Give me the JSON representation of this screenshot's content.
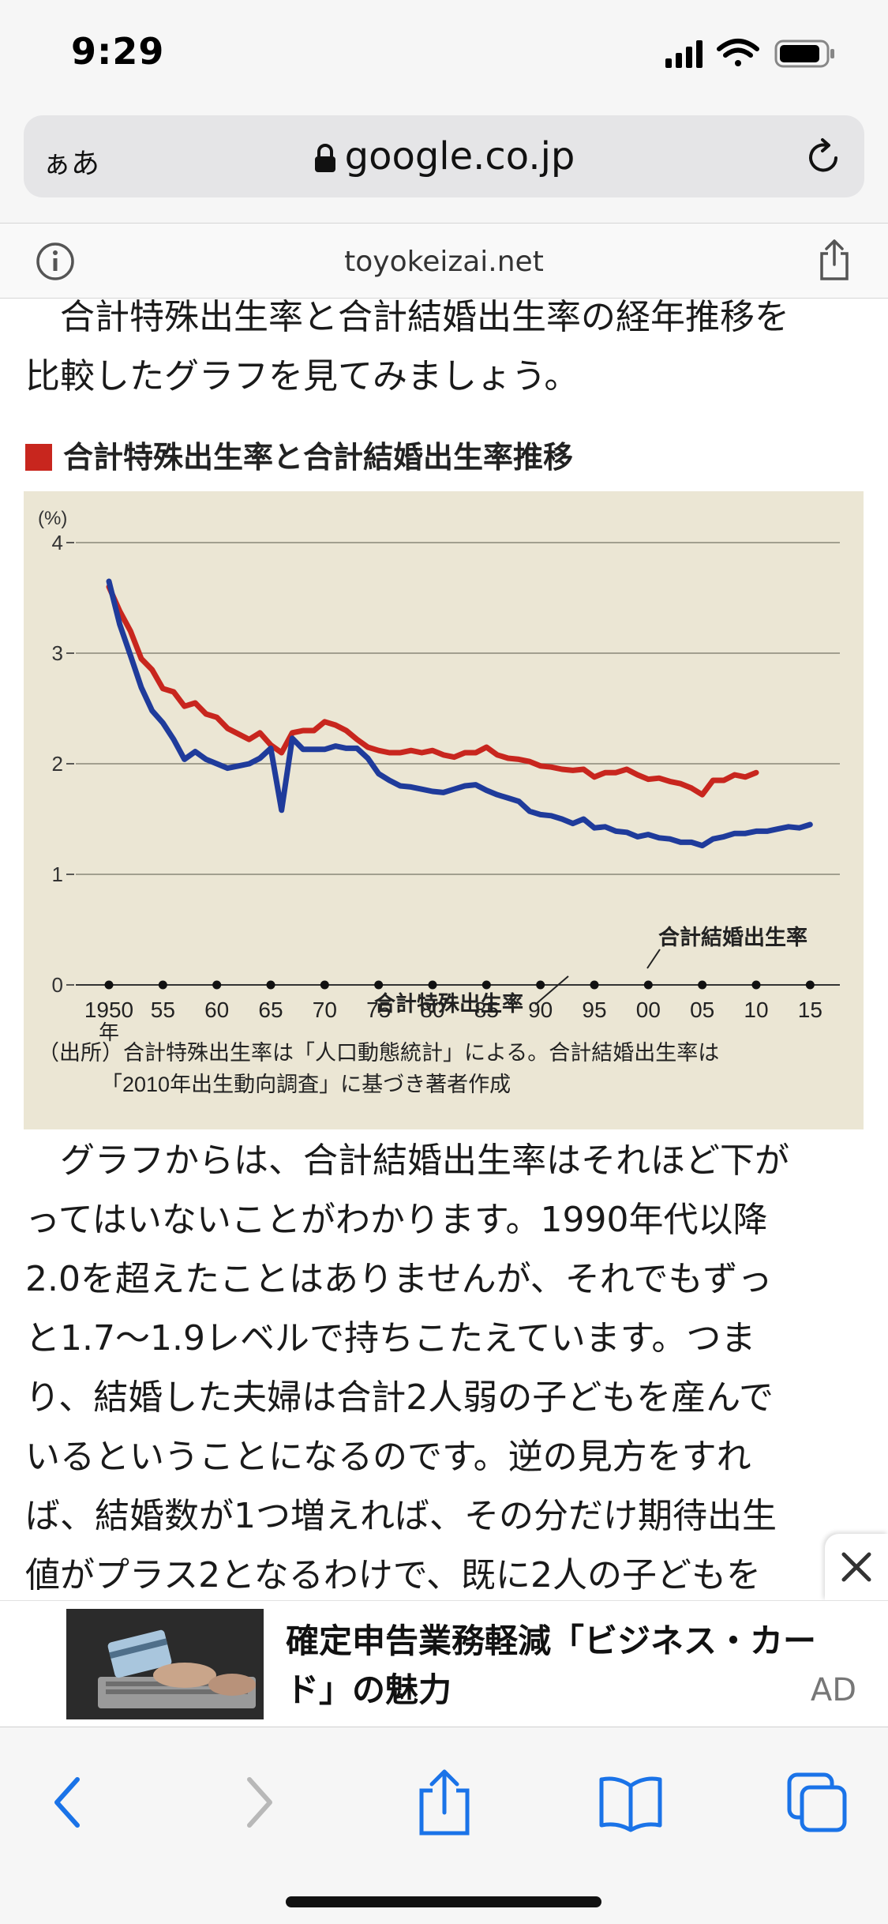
{
  "status": {
    "time": "9:29"
  },
  "browser": {
    "aa_label": "ぁあ",
    "url": "google.co.jp",
    "domain": "toyokeizai.net"
  },
  "article": {
    "para_intro": [
      "　合計特殊出生率と合計結婚出生率の経年推移を",
      "比較したグラフを見てみましょう。"
    ],
    "chart_heading": "合計特殊出生率と合計結婚出生率推移",
    "para_body": [
      "　グラフからは、合計結婚出生率はそれほど下が",
      "ってはいないことがわかります。1990年代以降",
      "2.0を超えたことはありませんが、それでもずっ",
      "と1.7～1.9レベルで持ちこたえています。つま",
      "り、結婚した夫婦は合計2人弱の子どもを産んで",
      "いるということになるのです。逆の見方をすれ",
      "ば、結婚数が1つ増えれば、その分だけ期待出生",
      "値がプラス2となるわけで、既に2人の子どもを"
    ]
  },
  "chart_data": {
    "type": "line",
    "title": "合計特殊出生率と合計結婚出生率推移",
    "ylabel": "(%)",
    "ylim": [
      0,
      4
    ],
    "yticks": [
      "0",
      "1",
      "2",
      "3",
      "4"
    ],
    "xlim": [
      1950,
      2016
    ],
    "xtick_values": [
      1950,
      1955,
      1960,
      1965,
      1970,
      1975,
      1980,
      1985,
      1990,
      1995,
      2000,
      2005,
      2010,
      2015
    ],
    "xtick_labels": [
      "1950",
      "55",
      "60",
      "65",
      "70",
      "75",
      "80",
      "85",
      "90",
      "95",
      "00",
      "05",
      "10",
      "15"
    ],
    "xunit": "年",
    "grid": true,
    "source_note": [
      "（出所）合計特殊出生率は「人口動態統計」による。合計結婚出生率は",
      "「2010年出生動向調査」に基づき著者作成"
    ],
    "series": [
      {
        "name": "合計結婚出生率",
        "color": "#c8261e",
        "x": [
          1950,
          1951,
          1952,
          1953,
          1954,
          1955,
          1956,
          1957,
          1958,
          1959,
          1960,
          1961,
          1962,
          1963,
          1964,
          1965,
          1966,
          1967,
          1968,
          1969,
          1970,
          1971,
          1972,
          1973,
          1974,
          1975,
          1976,
          1977,
          1978,
          1979,
          1980,
          1981,
          1982,
          1983,
          1984,
          1985,
          1986,
          1987,
          1988,
          1989,
          1990,
          1991,
          1992,
          1993,
          1994,
          1995,
          1996,
          1997,
          1998,
          1999,
          2000,
          2001,
          2002,
          2003,
          2004,
          2005,
          2006,
          2007,
          2008,
          2009,
          2010
        ],
        "y": [
          3.6,
          3.38,
          3.2,
          2.95,
          2.85,
          2.68,
          2.65,
          2.52,
          2.55,
          2.45,
          2.42,
          2.32,
          2.27,
          2.22,
          2.28,
          2.17,
          2.1,
          2.28,
          2.3,
          2.3,
          2.38,
          2.35,
          2.3,
          2.22,
          2.15,
          2.12,
          2.1,
          2.1,
          2.12,
          2.1,
          2.12,
          2.08,
          2.06,
          2.1,
          2.1,
          2.15,
          2.08,
          2.05,
          2.04,
          2.02,
          1.98,
          1.97,
          1.95,
          1.94,
          1.95,
          1.88,
          1.92,
          1.92,
          1.95,
          1.9,
          1.86,
          1.87,
          1.84,
          1.82,
          1.78,
          1.72,
          1.85,
          1.85,
          1.9,
          1.88,
          1.92
        ]
      },
      {
        "name": "合計特殊出生率",
        "color": "#1f3b9b",
        "x": [
          1950,
          1951,
          1952,
          1953,
          1954,
          1955,
          1956,
          1957,
          1958,
          1959,
          1960,
          1961,
          1962,
          1963,
          1964,
          1965,
          1966,
          1967,
          1968,
          1969,
          1970,
          1971,
          1972,
          1973,
          1974,
          1975,
          1976,
          1977,
          1978,
          1979,
          1980,
          1981,
          1982,
          1983,
          1984,
          1985,
          1986,
          1987,
          1988,
          1989,
          1990,
          1991,
          1992,
          1993,
          1994,
          1995,
          1996,
          1997,
          1998,
          1999,
          2000,
          2001,
          2002,
          2003,
          2004,
          2005,
          2006,
          2007,
          2008,
          2009,
          2010,
          2011,
          2012,
          2013,
          2014,
          2015
        ],
        "y": [
          3.65,
          3.26,
          2.98,
          2.69,
          2.48,
          2.37,
          2.22,
          2.04,
          2.11,
          2.04,
          2.0,
          1.96,
          1.98,
          2.0,
          2.05,
          2.14,
          1.58,
          2.23,
          2.13,
          2.13,
          2.13,
          2.16,
          2.14,
          2.14,
          2.05,
          1.91,
          1.85,
          1.8,
          1.79,
          1.77,
          1.75,
          1.74,
          1.77,
          1.8,
          1.81,
          1.76,
          1.72,
          1.69,
          1.66,
          1.57,
          1.54,
          1.53,
          1.5,
          1.46,
          1.5,
          1.42,
          1.43,
          1.39,
          1.38,
          1.34,
          1.36,
          1.33,
          1.32,
          1.29,
          1.29,
          1.26,
          1.32,
          1.34,
          1.37,
          1.37,
          1.39,
          1.39,
          1.41,
          1.43,
          1.42,
          1.45
        ]
      }
    ]
  },
  "ad": {
    "headline": "確定申告業務軽減「ビジネス・カード」の魅力",
    "label": "AD"
  }
}
